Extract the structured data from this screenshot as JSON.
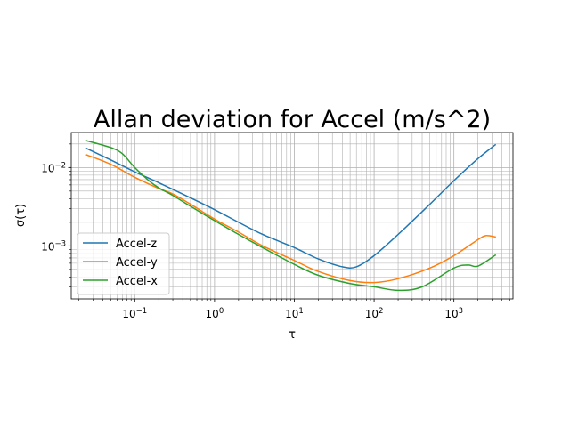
{
  "chart_data": {
    "type": "line",
    "title": "Allan deviation for Accel (m/s^2)",
    "xlabel": "τ",
    "ylabel": "σ(τ)",
    "xscale": "log",
    "yscale": "log",
    "xlim": [
      0.016,
      5500
    ],
    "ylim": [
      0.00021,
      0.028
    ],
    "grid": "major and minor",
    "legend_position": "lower-left",
    "x_ticks": [
      {
        "value": 0.1,
        "base": "10",
        "exp": "−1"
      },
      {
        "value": 1,
        "base": "10",
        "exp": "0"
      },
      {
        "value": 10,
        "base": "10",
        "exp": "1"
      },
      {
        "value": 100,
        "base": "10",
        "exp": "2"
      },
      {
        "value": 1000,
        "base": "10",
        "exp": "3"
      }
    ],
    "y_ticks": [
      {
        "value": 0.001,
        "base": "10",
        "exp": "−3"
      },
      {
        "value": 0.01,
        "base": "10",
        "exp": "−2"
      }
    ],
    "series": [
      {
        "name": "Accel-z",
        "color": "#1f77b4",
        "x": [
          0.025,
          0.05,
          0.1,
          0.2,
          0.5,
          1,
          2,
          4,
          10,
          20,
          40,
          60,
          100,
          200,
          500,
          1000,
          2000,
          3300
        ],
        "y": [
          0.0175,
          0.0125,
          0.0088,
          0.0064,
          0.0041,
          0.0029,
          0.002,
          0.0014,
          0.00095,
          0.00068,
          0.00054,
          0.00054,
          0.00075,
          0.0014,
          0.0034,
          0.0068,
          0.013,
          0.0195
        ]
      },
      {
        "name": "Accel-y",
        "color": "#ff7f0e",
        "x": [
          0.025,
          0.05,
          0.1,
          0.2,
          0.3,
          0.5,
          1,
          2,
          4,
          10,
          20,
          50,
          100,
          200,
          500,
          1000,
          2000,
          2500,
          3300
        ],
        "y": [
          0.0145,
          0.011,
          0.0075,
          0.0054,
          0.0046,
          0.0034,
          0.0022,
          0.0015,
          0.001,
          0.00065,
          0.00047,
          0.00036,
          0.00034,
          0.00038,
          0.00052,
          0.00075,
          0.0012,
          0.00135,
          0.0013
        ]
      },
      {
        "name": "Accel-x",
        "color": "#2ca02c",
        "x": [
          0.025,
          0.05,
          0.07,
          0.1,
          0.15,
          0.2,
          0.3,
          0.5,
          1,
          2,
          4,
          10,
          20,
          50,
          100,
          200,
          400,
          1000,
          1500,
          2000,
          3300
        ],
        "y": [
          0.022,
          0.018,
          0.015,
          0.01,
          0.0068,
          0.0055,
          0.0044,
          0.0032,
          0.0021,
          0.0014,
          0.00095,
          0.00058,
          0.00042,
          0.00033,
          0.0003,
          0.00027,
          0.0003,
          0.00052,
          0.00057,
          0.00055,
          0.00076
        ]
      }
    ]
  }
}
